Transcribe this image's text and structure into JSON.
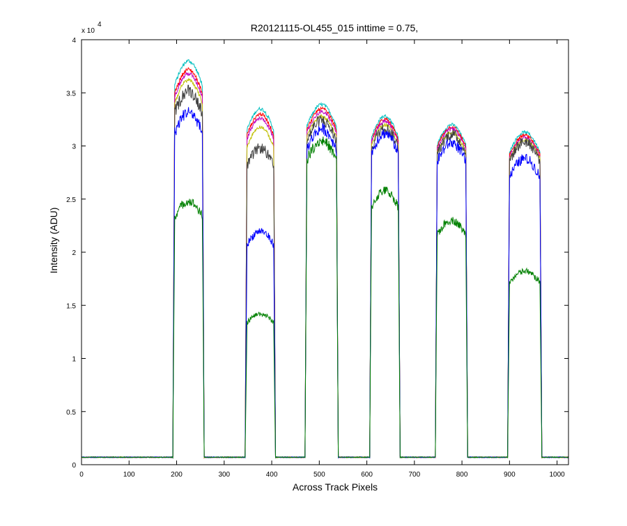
{
  "figure": {
    "title": "R20121115-OL455_015 inttime = 0.75,",
    "xlabel": "Across Track Pixels",
    "ylabel": "Intensity (ADU)",
    "y_multiplier_base": "x 10",
    "y_multiplier_exp": "4"
  },
  "chart_data": {
    "type": "line",
    "title": "R20121115-OL455_015 inttime = 0.75,",
    "xlabel": "Across Track Pixels",
    "ylabel": "Intensity (ADU)",
    "y_scale_note": "x 10^4",
    "xlim": [
      0,
      1024
    ],
    "ylim": [
      0,
      40000
    ],
    "x_ticks": [
      0,
      100,
      200,
      300,
      400,
      500,
      600,
      700,
      800,
      900,
      1000
    ],
    "x_tick_labels": [
      "0",
      "100",
      "200",
      "300",
      "400",
      "500",
      "600",
      "700",
      "800",
      "900",
      "1000"
    ],
    "y_ticks": [
      0,
      5000,
      10000,
      15000,
      20000,
      25000,
      30000,
      35000,
      40000
    ],
    "y_tick_labels": [
      "0",
      "0.5",
      "1",
      "1.5",
      "2",
      "2.5",
      "3",
      "3.5",
      "4"
    ],
    "grid": false,
    "legend": "none",
    "baseline": 700,
    "plateaus": [
      {
        "x_start": 196,
        "x_end": 254
      },
      {
        "x_start": 348,
        "x_end": 404
      },
      {
        "x_start": 474,
        "x_end": 536
      },
      {
        "x_start": 610,
        "x_end": 666
      },
      {
        "x_start": 748,
        "x_end": 808
      },
      {
        "x_start": 900,
        "x_end": 964
      }
    ],
    "series": [
      {
        "color": "#00bfbf",
        "peak_values": [
          38000,
          33500,
          33900,
          32800,
          32000,
          31300
        ]
      },
      {
        "color": "#ff0000",
        "peak_values": [
          37200,
          33000,
          33500,
          32500,
          31800,
          31000
        ]
      },
      {
        "color": "#bf00bf",
        "peak_values": [
          36800,
          32600,
          33200,
          32300,
          31600,
          30800
        ]
      },
      {
        "color": "#bfbf00",
        "peak_values": [
          36200,
          31800,
          32800,
          32000,
          31300,
          30600
        ]
      },
      {
        "color": "#404040",
        "peak_values": [
          35200,
          29800,
          32400,
          31700,
          31100,
          30400
        ]
      },
      {
        "color": "#0000ff",
        "peak_values": [
          33200,
          22000,
          31600,
          31200,
          30300,
          28800
        ]
      },
      {
        "color": "#008000",
        "peak_values": [
          24800,
          14200,
          30500,
          25800,
          23000,
          18200
        ]
      }
    ]
  }
}
